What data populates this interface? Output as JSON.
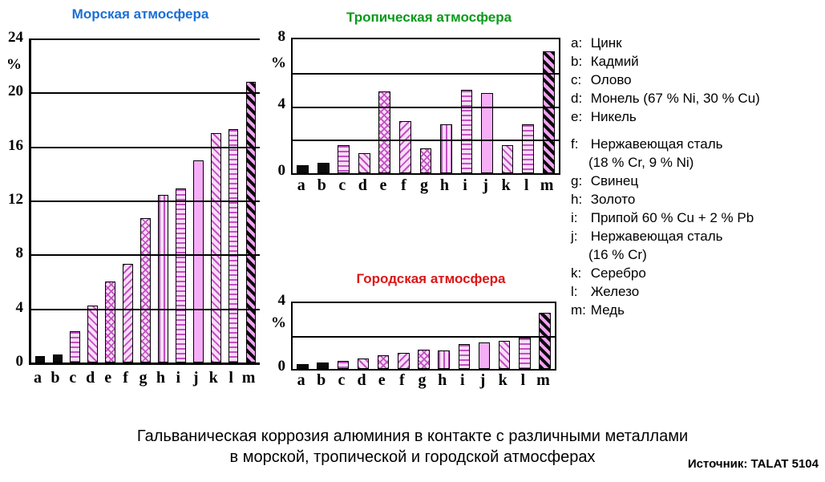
{
  "chart_data": [
    {
      "type": "bar",
      "title": "Морская атмосфера",
      "title_color": "#1b6fd4",
      "unit": "%",
      "categories": [
        "a",
        "b",
        "c",
        "d",
        "e",
        "f",
        "g",
        "h",
        "i",
        "j",
        "k",
        "l",
        "m"
      ],
      "values": [
        0.5,
        0.6,
        2.3,
        4.2,
        6.0,
        7.3,
        10.7,
        12.4,
        12.9,
        15.0,
        17.0,
        17.3,
        20.8
      ],
      "ylim": [
        0,
        24
      ],
      "yticks": [
        0,
        4,
        8,
        12,
        16,
        20,
        24
      ],
      "gridlines": [
        4,
        8,
        12,
        16,
        20,
        24
      ],
      "grid": true,
      "legend_position": "none"
    },
    {
      "type": "bar",
      "title": "Тропическая атмосфера",
      "title_color": "#0a9a1a",
      "unit": "%",
      "categories": [
        "a",
        "b",
        "c",
        "d",
        "e",
        "f",
        "g",
        "h",
        "i",
        "j",
        "k",
        "l",
        "m"
      ],
      "values": [
        0.5,
        0.6,
        1.7,
        1.2,
        4.9,
        3.1,
        1.5,
        2.9,
        5.0,
        4.8,
        1.7,
        2.9,
        7.3
      ],
      "ylim": [
        0,
        8
      ],
      "yticks": [
        0,
        4,
        8
      ],
      "gridlines": [
        2,
        4,
        6
      ],
      "grid": true,
      "legend_position": "none"
    },
    {
      "type": "bar",
      "title": "Городская атмосфера",
      "title_color": "#dd1515",
      "unit": "%",
      "categories": [
        "a",
        "b",
        "c",
        "d",
        "e",
        "f",
        "g",
        "h",
        "i",
        "j",
        "k",
        "l",
        "m"
      ],
      "values": [
        0.3,
        0.4,
        0.5,
        0.65,
        0.85,
        1.0,
        1.15,
        1.1,
        1.5,
        1.6,
        1.7,
        1.9,
        3.4
      ],
      "ylim": [
        0,
        4
      ],
      "yticks": [
        0,
        4
      ],
      "gridlines": [
        2
      ],
      "grid": true,
      "legend_position": "none"
    }
  ],
  "bar_patterns": [
    "black",
    "black",
    "hstripe",
    "diag",
    "xhatch",
    "diag2",
    "xhatch",
    "vstripe",
    "hstripe",
    "solid",
    "diag",
    "hstripe",
    "blackhatch"
  ],
  "legend": {
    "items": [
      {
        "key": "a",
        "label": "Цинк"
      },
      {
        "key": "b",
        "label": "Кадмий"
      },
      {
        "key": "c",
        "label": "Олово"
      },
      {
        "key": "d",
        "label": "Монель (67 % Ni, 30 % Cu)"
      },
      {
        "key": "e",
        "label": "Никель"
      },
      {
        "key": "f",
        "label": "Нержавеющая сталь",
        "label2": "(18 % Cr, 9 % Ni)",
        "gap_before": true
      },
      {
        "key": "g",
        "label": "Свинец"
      },
      {
        "key": "h",
        "label": "Золото"
      },
      {
        "key": "i",
        "label": "Припой 60 % Cu + 2 % Pb"
      },
      {
        "key": "j",
        "label": "Нержавеющая сталь",
        "label2": "(16 % Cr)"
      },
      {
        "key": "k",
        "label": "Серебро"
      },
      {
        "key": "l",
        "label": "Железо"
      },
      {
        "key": "m",
        "label": "Медь"
      }
    ]
  },
  "caption": {
    "line1": "Гальваническая коррозия алюминия в контакте с различными металлами",
    "line2": "в морской, тропической и городской атмосферах"
  },
  "source": "Источник: TALAT 5104",
  "colors": {
    "marine_title": "#1b6fd4",
    "tropical_title": "#0a9a1a",
    "urban_title": "#dd1515",
    "bar_pink_light": "#fbdcfb",
    "bar_pink_dark": "#c050c0",
    "bar_black": "#0b0b0b"
  }
}
